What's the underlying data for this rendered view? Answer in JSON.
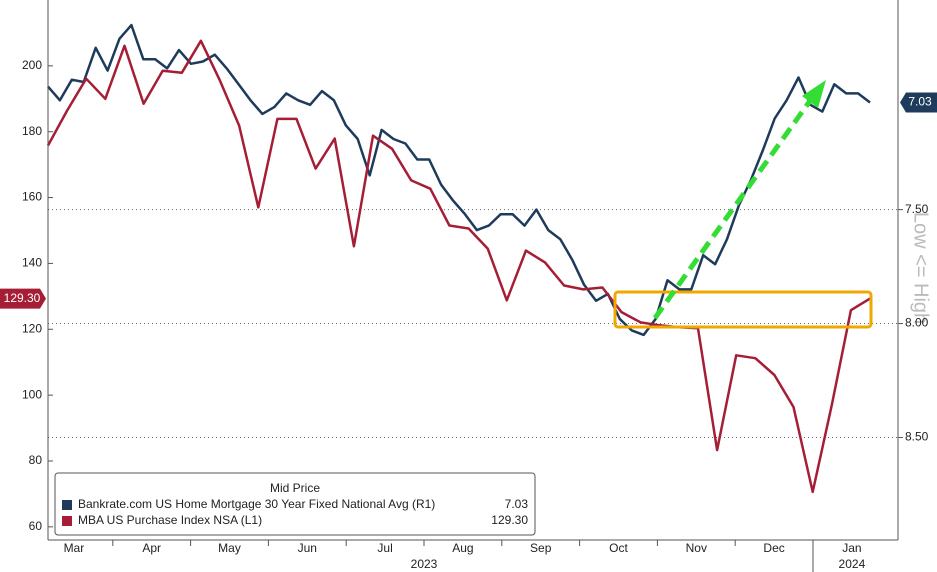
{
  "chart_data": {
    "type": "line",
    "legend_title": "Mid Price",
    "annotation": "Low <= High",
    "months": [
      "Mar",
      "Apr",
      "May",
      "Jun",
      "Jul",
      "Aug",
      "Sep",
      "Oct",
      "Nov",
      "Dec",
      "Jan"
    ],
    "years": [
      "2023",
      "2024"
    ],
    "ylim": [
      56,
      220
    ],
    "yticks": [
      60,
      80,
      100,
      120,
      140,
      160,
      180,
      200
    ],
    "y2lim": [
      8.95,
      6.58
    ],
    "y2ticks": [
      {
        "value": 7.5,
        "label": "7.50"
      },
      {
        "value": 8,
        "label": "8.00"
      },
      {
        "value": 8.5,
        "label": "8.50"
      }
    ],
    "grid": true,
    "series": [
      {
        "name": "Bankrate.com US Home Mortgage 30 Year Fixed National Avg  (R1)",
        "color": "#1f3b5c",
        "axis": "y2",
        "legend_value": "7.03",
        "values": [
          6.96,
          7.02,
          6.93,
          6.94,
          6.79,
          6.89,
          6.75,
          6.69,
          6.84,
          6.84,
          6.88,
          6.8,
          6.86,
          6.85,
          6.82,
          6.88,
          6.95,
          7.02,
          7.08,
          7.05,
          6.99,
          7.02,
          7.04,
          6.98,
          7.02,
          7.13,
          7.19,
          7.35,
          7.15,
          7.19,
          7.21,
          7.28,
          7.28,
          7.39,
          7.46,
          7.52,
          7.59,
          7.57,
          7.52,
          7.52,
          7.57,
          7.5,
          7.59,
          7.63,
          7.72,
          7.83,
          7.9,
          7.87,
          7.98,
          8.03,
          8.05,
          7.98,
          7.81,
          7.85,
          7.85,
          7.7,
          7.74,
          7.63,
          7.48,
          7.37,
          7.24,
          7.1,
          7.02,
          6.92,
          7.04,
          7.07,
          6.95,
          6.99,
          6.99,
          7.03
        ]
      },
      {
        "name": "MBA US Purchase Index NSA  (L1)",
        "color": "#a51e36",
        "axis": "y",
        "legend_value": "129.30",
        "values": [
          175.8,
          186.4,
          196.1,
          190.0,
          206.1,
          188.5,
          198.5,
          197.9,
          207.6,
          195.5,
          181.8,
          157.0,
          183.9,
          183.9,
          168.8,
          177.9,
          145.2,
          178.8,
          174.8,
          165.2,
          162.7,
          151.5,
          150.6,
          144.5,
          128.8,
          143.9,
          140.3,
          133.3,
          132.1,
          132.7,
          125.2,
          122.1,
          121.2,
          120.6,
          120.3,
          83.3,
          112.1,
          111.2,
          106.1,
          96.4,
          70.6,
          97.0,
          125.8,
          129.3
        ]
      }
    ]
  }
}
